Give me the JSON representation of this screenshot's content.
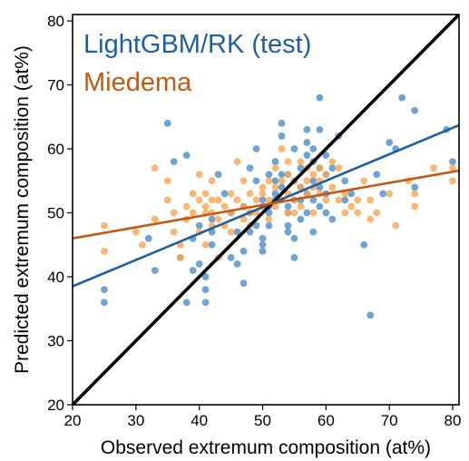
{
  "chart_data": {
    "type": "scatter",
    "xlabel": "Observed extremum composition (at%)",
    "ylabel": "Predicted extremum composition (at%)",
    "xlim": [
      20,
      81
    ],
    "ylim": [
      20,
      81
    ],
    "x_ticks": [
      20,
      30,
      40,
      50,
      60,
      70,
      80
    ],
    "y_ticks": [
      20,
      30,
      40,
      50,
      60,
      70,
      80
    ],
    "grid": false,
    "legend_position": "top-left",
    "series": [
      {
        "name": "LightGBM/RK (test)",
        "color": "#1f5fa0",
        "marker_color": "#4a8dc8",
        "points": [
          [
            25,
            38
          ],
          [
            25,
            36
          ],
          [
            32,
            46
          ],
          [
            33,
            41
          ],
          [
            35,
            64
          ],
          [
            36,
            58
          ],
          [
            37,
            43
          ],
          [
            38,
            59
          ],
          [
            38,
            36
          ],
          [
            39,
            46
          ],
          [
            39,
            41
          ],
          [
            40,
            48
          ],
          [
            40,
            42
          ],
          [
            41,
            40
          ],
          [
            41,
            38
          ],
          [
            41,
            36
          ],
          [
            42,
            47
          ],
          [
            42,
            45
          ],
          [
            42,
            49
          ],
          [
            43,
            56
          ],
          [
            44,
            53
          ],
          [
            45,
            50
          ],
          [
            45,
            43
          ],
          [
            46,
            42
          ],
          [
            46,
            47
          ],
          [
            47,
            51
          ],
          [
            47,
            39
          ],
          [
            47,
            44
          ],
          [
            48,
            50
          ],
          [
            48,
            47
          ],
          [
            48,
            57
          ],
          [
            49,
            60
          ],
          [
            49,
            48
          ],
          [
            49,
            55
          ],
          [
            50,
            46
          ],
          [
            50,
            45
          ],
          [
            50,
            44
          ],
          [
            50,
            52
          ],
          [
            51,
            51
          ],
          [
            51,
            50
          ],
          [
            51,
            48
          ],
          [
            51,
            56
          ],
          [
            52,
            58
          ],
          [
            52,
            55
          ],
          [
            52,
            53
          ],
          [
            52,
            52
          ],
          [
            53,
            56
          ],
          [
            53,
            64
          ],
          [
            53,
            62
          ],
          [
            53,
            54
          ],
          [
            54,
            51
          ],
          [
            54,
            50
          ],
          [
            54,
            48
          ],
          [
            54,
            47
          ],
          [
            54,
            56
          ],
          [
            55,
            60
          ],
          [
            55,
            55
          ],
          [
            55,
            52
          ],
          [
            55,
            46
          ],
          [
            55,
            43
          ],
          [
            56,
            57
          ],
          [
            56,
            54
          ],
          [
            56,
            52
          ],
          [
            56,
            49
          ],
          [
            57,
            59
          ],
          [
            57,
            63
          ],
          [
            57,
            61
          ],
          [
            57,
            53
          ],
          [
            57,
            50
          ],
          [
            58,
            60
          ],
          [
            58,
            58
          ],
          [
            58,
            55
          ],
          [
            58,
            52
          ],
          [
            58,
            47
          ],
          [
            59,
            68
          ],
          [
            59,
            63
          ],
          [
            59,
            57
          ],
          [
            59,
            54
          ],
          [
            59,
            51
          ],
          [
            60,
            59
          ],
          [
            60,
            56
          ],
          [
            60,
            53
          ],
          [
            60,
            50
          ],
          [
            61,
            57
          ],
          [
            61,
            49
          ],
          [
            62,
            62
          ],
          [
            63,
            55
          ],
          [
            63,
            52
          ],
          [
            64,
            53
          ],
          [
            66,
            45
          ],
          [
            67,
            34
          ],
          [
            68,
            56
          ],
          [
            69,
            53
          ],
          [
            70,
            61
          ],
          [
            71,
            60
          ],
          [
            72,
            68
          ],
          [
            74,
            66
          ],
          [
            74,
            54
          ],
          [
            79,
            63
          ],
          [
            80,
            58
          ]
        ]
      },
      {
        "name": "Miedema",
        "color": "#c45a12",
        "marker_color": "#f7a552",
        "points": [
          [
            25,
            48
          ],
          [
            25,
            44
          ],
          [
            30,
            47
          ],
          [
            31,
            45
          ],
          [
            33,
            57
          ],
          [
            33,
            49
          ],
          [
            35,
            55
          ],
          [
            35,
            52
          ],
          [
            36,
            50
          ],
          [
            36,
            47
          ],
          [
            37,
            45
          ],
          [
            37,
            43
          ],
          [
            38,
            51
          ],
          [
            38,
            49
          ],
          [
            39,
            53
          ],
          [
            39,
            50
          ],
          [
            40,
            56
          ],
          [
            40,
            52
          ],
          [
            40,
            47
          ],
          [
            41,
            53
          ],
          [
            41,
            51
          ],
          [
            41,
            50
          ],
          [
            41,
            45
          ],
          [
            42,
            55
          ],
          [
            42,
            52
          ],
          [
            42,
            50
          ],
          [
            42,
            48
          ],
          [
            43,
            52
          ],
          [
            43,
            49
          ],
          [
            43,
            43
          ],
          [
            44,
            51
          ],
          [
            44,
            48
          ],
          [
            45,
            53
          ],
          [
            45,
            50
          ],
          [
            45,
            47
          ],
          [
            46,
            58
          ],
          [
            46,
            52
          ],
          [
            47,
            55
          ],
          [
            47,
            51
          ],
          [
            47,
            49
          ],
          [
            48,
            53
          ],
          [
            48,
            50
          ],
          [
            48,
            48
          ],
          [
            49,
            52
          ],
          [
            49,
            50
          ],
          [
            50,
            54
          ],
          [
            50,
            53
          ],
          [
            50,
            51
          ],
          [
            51,
            55
          ],
          [
            51,
            52
          ],
          [
            51,
            49
          ],
          [
            52,
            57
          ],
          [
            52,
            54
          ],
          [
            52,
            51
          ],
          [
            53,
            60
          ],
          [
            53,
            55
          ],
          [
            53,
            52
          ],
          [
            54,
            58
          ],
          [
            54,
            56
          ],
          [
            54,
            53
          ],
          [
            54,
            50
          ],
          [
            55,
            55
          ],
          [
            55,
            52
          ],
          [
            55,
            50
          ],
          [
            56,
            58
          ],
          [
            56,
            54
          ],
          [
            56,
            51
          ],
          [
            57,
            57
          ],
          [
            57,
            55
          ],
          [
            57,
            53
          ],
          [
            58,
            56
          ],
          [
            58,
            54
          ],
          [
            58,
            50
          ],
          [
            59,
            57
          ],
          [
            59,
            55
          ],
          [
            59,
            53
          ],
          [
            60,
            56
          ],
          [
            60,
            52
          ],
          [
            61,
            58
          ],
          [
            61,
            54
          ],
          [
            62,
            57
          ],
          [
            62,
            52
          ],
          [
            63,
            53
          ],
          [
            63,
            50
          ],
          [
            64,
            51
          ],
          [
            65,
            52
          ],
          [
            65,
            50
          ],
          [
            66,
            55
          ],
          [
            67,
            52
          ],
          [
            67,
            49
          ],
          [
            68,
            50
          ],
          [
            70,
            53
          ],
          [
            71,
            48
          ],
          [
            73,
            55
          ],
          [
            74,
            53
          ],
          [
            74,
            51
          ],
          [
            77,
            57
          ],
          [
            80,
            57
          ],
          [
            80,
            55
          ]
        ]
      }
    ],
    "lines": [
      {
        "name": "y = x",
        "color": "#000000",
        "x": [
          20,
          81
        ],
        "y": [
          20,
          81
        ]
      },
      {
        "name": "LightGBM/RK (test) fit",
        "color": "#1f5fa0",
        "x": [
          20,
          81
        ],
        "y": [
          38.5,
          63.7
        ]
      },
      {
        "name": "Miedema fit",
        "color": "#c45a12",
        "x": [
          20,
          81
        ],
        "y": [
          46.0,
          56.6
        ]
      }
    ]
  }
}
